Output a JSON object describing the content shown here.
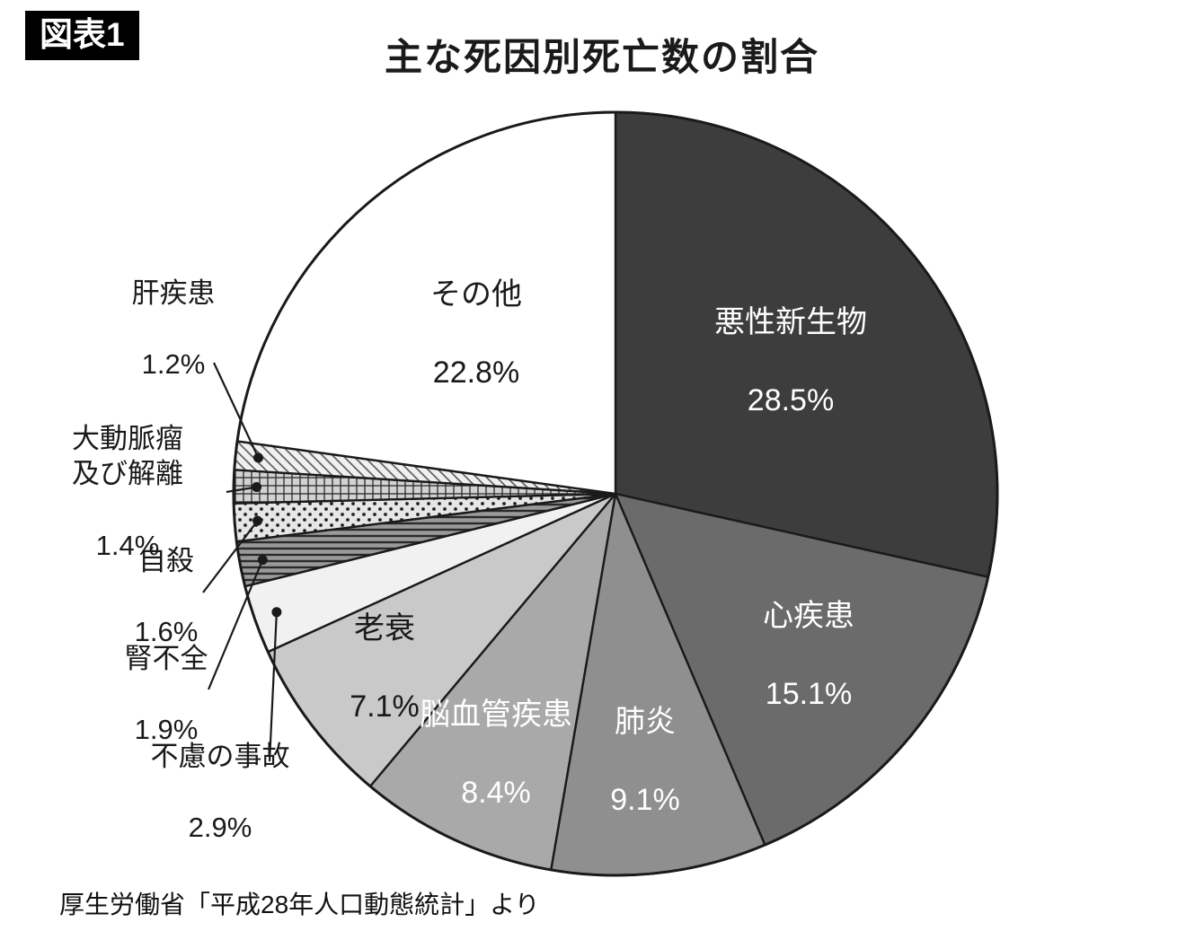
{
  "figure_tag": "図表1",
  "title": "主な死因別死亡数の割合",
  "source": "厚生労働省「平成28年人口動態統計」より",
  "chart_data": {
    "type": "pie",
    "title": "主な死因別死亡数の割合",
    "start_angle_deg": -90,
    "direction": "clockwise",
    "legend": "none",
    "slices": [
      {
        "label": "悪性新生物",
        "value": 28.5,
        "pct": "28.5%",
        "color": "#3d3d3d",
        "text_color": "#ffffff",
        "label_placement": "inside"
      },
      {
        "label": "心疾患",
        "value": 15.1,
        "pct": "15.1%",
        "color": "#6b6b6b",
        "text_color": "#ffffff",
        "label_placement": "inside"
      },
      {
        "label": "肺炎",
        "value": 9.1,
        "pct": "9.1%",
        "color": "#8f8f8f",
        "text_color": "#ffffff",
        "label_placement": "inside"
      },
      {
        "label": "脳血管疾患",
        "value": 8.4,
        "pct": "8.4%",
        "color": "#a9a9a9",
        "text_color": "#ffffff",
        "label_placement": "inside"
      },
      {
        "label": "老衰",
        "value": 7.1,
        "pct": "7.1%",
        "color": "#c9c9c9",
        "text_color": "#1a1a1a",
        "label_placement": "inside"
      },
      {
        "label": "不慮の事故",
        "value": 2.9,
        "pct": "2.9%",
        "color": "#f1f1f1",
        "label_placement": "outside"
      },
      {
        "label": "腎不全",
        "value": 1.9,
        "pct": "1.9%",
        "pattern": "stripes",
        "pattern_bg": "#999999",
        "pattern_fg": "#2a2a2a",
        "label_placement": "outside"
      },
      {
        "label": "自殺",
        "value": 1.6,
        "pct": "1.6%",
        "pattern": "dots",
        "pattern_bg": "#e6e6e6",
        "pattern_fg": "#222222",
        "label_placement": "outside"
      },
      {
        "label": "大動脈瘤\n及び解離",
        "value": 1.4,
        "pct": "1.4%",
        "pattern": "grid",
        "pattern_bg": "#d2d2d2",
        "pattern_fg": "#2a2a2a",
        "label_placement": "outside"
      },
      {
        "label": "肝疾患",
        "value": 1.2,
        "pct": "1.2%",
        "pattern": "hatch",
        "pattern_bg": "#f0f0f0",
        "pattern_fg": "#555555",
        "label_placement": "outside"
      },
      {
        "label": "その他",
        "value": 22.8,
        "pct": "22.8%",
        "color": "#ffffff",
        "text_color": "#1a1a1a",
        "label_placement": "inside"
      }
    ]
  }
}
